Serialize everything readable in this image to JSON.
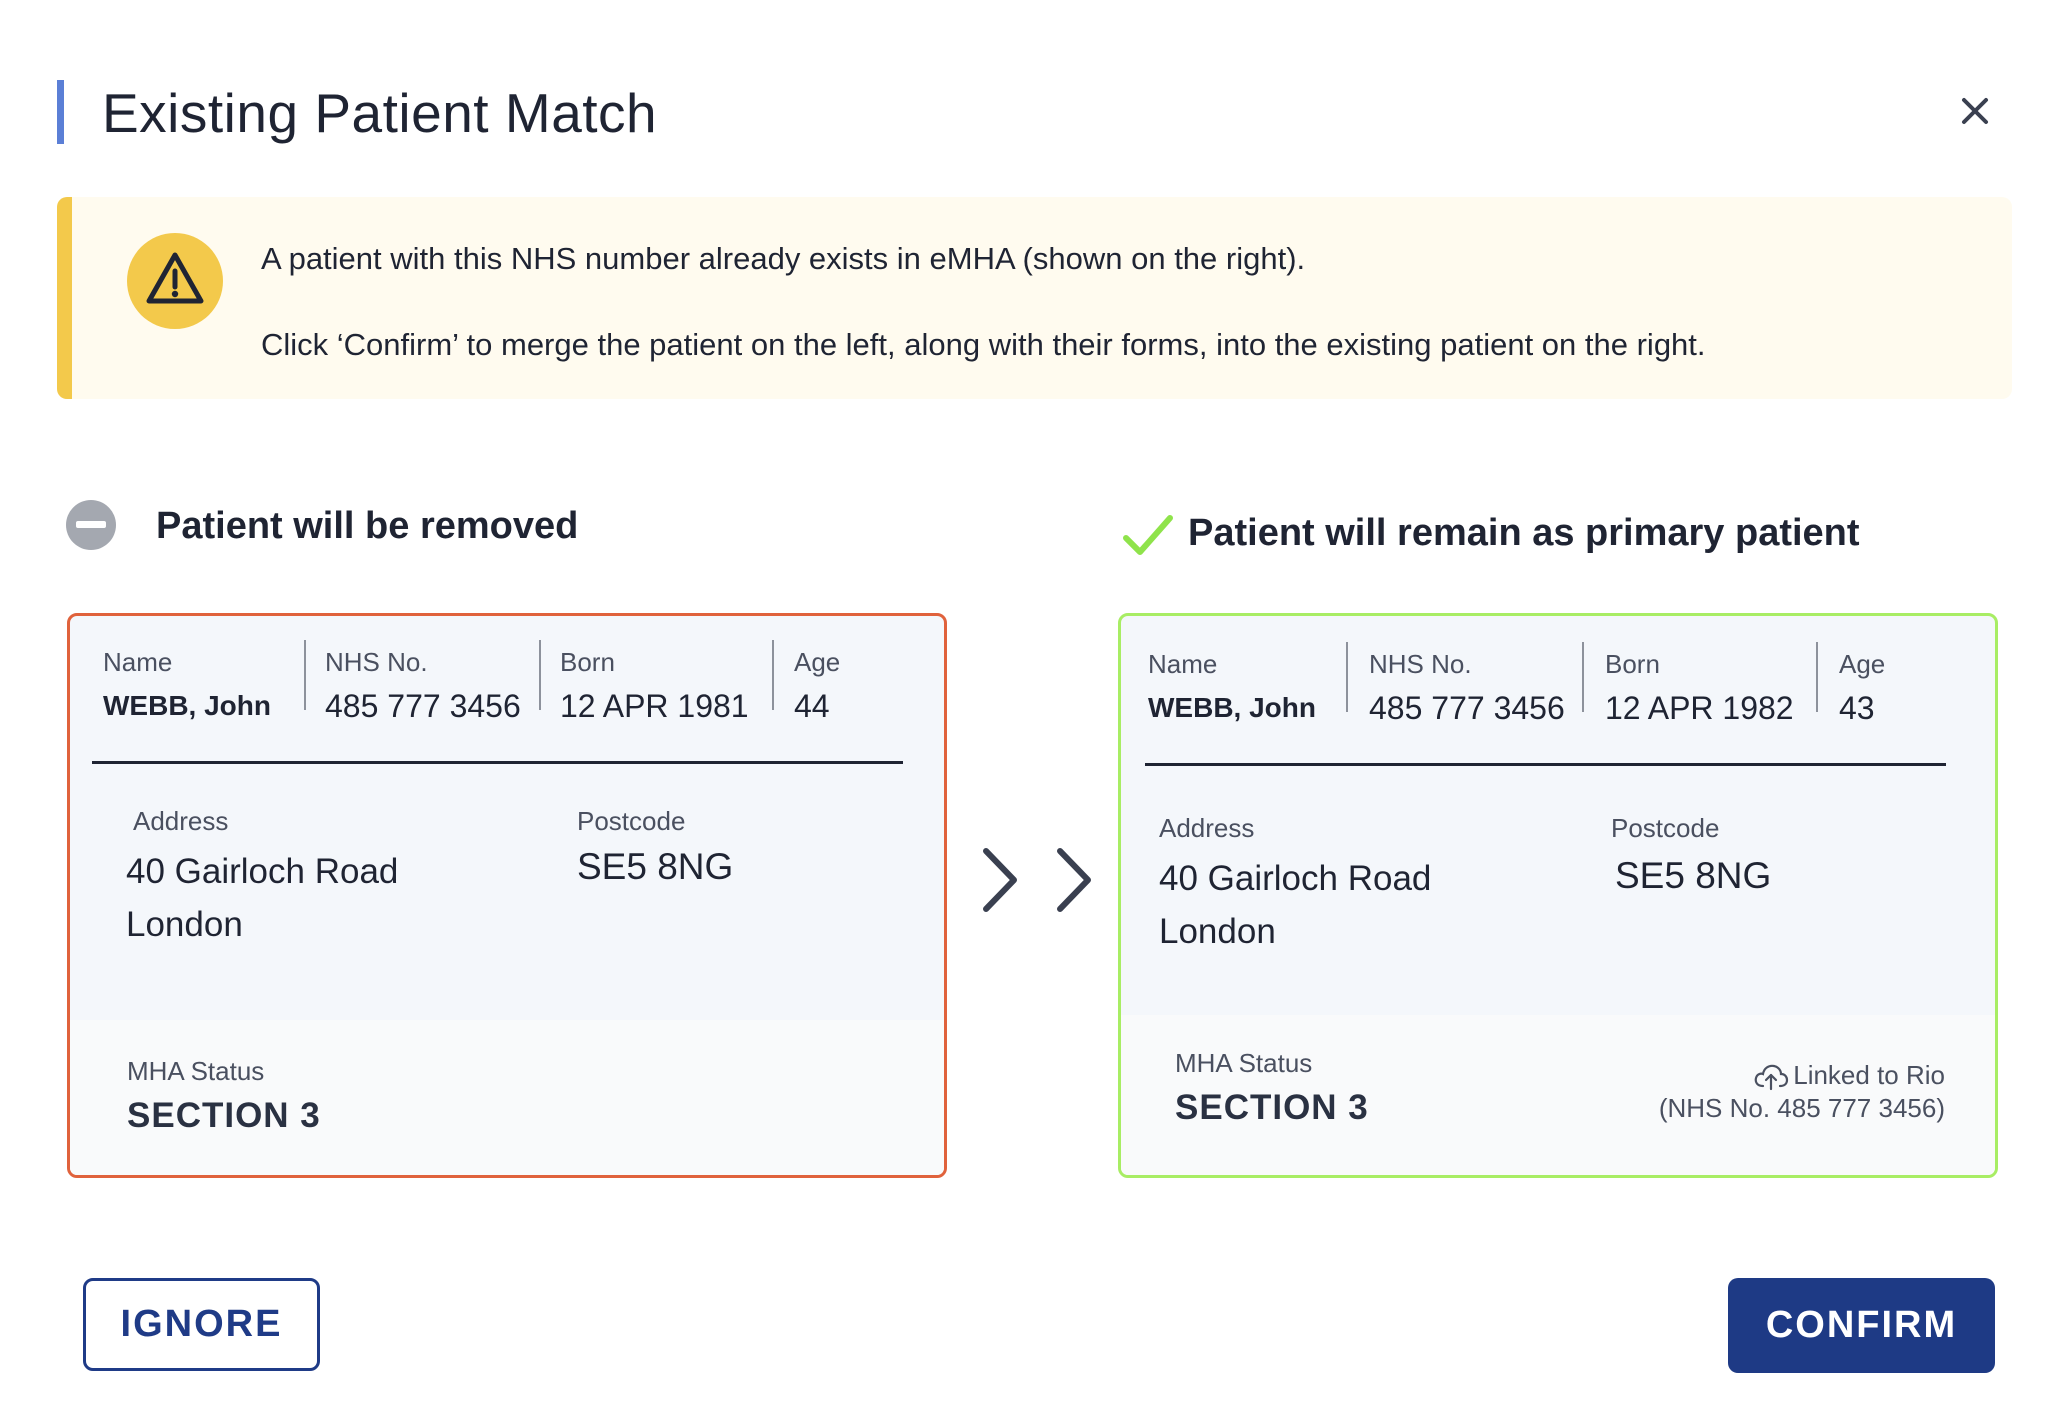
{
  "dialog": {
    "title": "Existing Patient Match",
    "close_icon": "close-icon"
  },
  "alert": {
    "icon": "warning-icon",
    "line1": "A patient with this NHS number already exists in eMHA (shown on the right).",
    "line2": "Click ‘Confirm’ to merge the patient on the left, along with their forms, into the existing patient on the right.",
    "colors": {
      "background": "#fffbef",
      "accent": "#f3c94b"
    }
  },
  "left": {
    "heading": "Patient will be removed",
    "icon": "minus-circle-icon",
    "border_color": "#e0623c",
    "labels": {
      "name": "Name",
      "nhs": "NHS No.",
      "born": "Born",
      "age": "Age",
      "address": "Address",
      "postcode": "Postcode",
      "status": "MHA Status"
    },
    "name": "WEBB, John",
    "nhs": "485 777 3456",
    "born": "12 APR 1981",
    "age": "44",
    "address_line1": "40 Gairloch Road",
    "address_line2": "London",
    "postcode": "SE5 8NG",
    "status": "SECTION 3"
  },
  "right": {
    "heading": "Patient will remain as primary patient",
    "icon": "check-icon",
    "border_color": "#a8ed64",
    "labels": {
      "name": "Name",
      "nhs": "NHS No.",
      "born": "Born",
      "age": "Age",
      "address": "Address",
      "postcode": "Postcode",
      "status": "MHA Status"
    },
    "name": "WEBB, John",
    "nhs": "485 777 3456",
    "born": "12 APR 1982",
    "age": "43",
    "address_line1": "40 Gairloch Road",
    "address_line2": "London",
    "postcode": "SE5 8NG",
    "status": "SECTION 3",
    "linked_icon": "cloud-upload-icon",
    "linked_line1": "Linked to Rio",
    "linked_line2": "(NHS No. 485 777 3456)"
  },
  "arrows_icon": "double-chevron-right-icon",
  "buttons": {
    "ignore": "IGNORE",
    "confirm": "CONFIRM",
    "colors": {
      "primary": "#1e3a85"
    }
  }
}
